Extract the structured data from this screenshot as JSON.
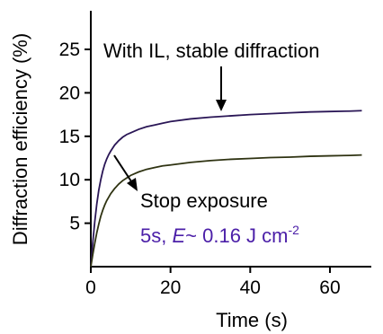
{
  "chart_data": {
    "type": "line",
    "title": "",
    "xlabel": "Time (s)",
    "ylabel": "Diffraction efficiency (%)",
    "xlim": [
      0,
      70
    ],
    "ylim": [
      0,
      30
    ],
    "x_ticks": [
      0,
      20,
      40,
      60
    ],
    "y_ticks": [
      5,
      10,
      15,
      20,
      25
    ],
    "grid": false,
    "series": [
      {
        "color": "#2a1656",
        "x": [
          0,
          0.5,
          1,
          1.5,
          2,
          2.5,
          3,
          3.5,
          4,
          4.5,
          5,
          6,
          7,
          8,
          9,
          10,
          12,
          14,
          16,
          18,
          20,
          25,
          30,
          35,
          40,
          45,
          50,
          55,
          60,
          65,
          68
        ],
        "y": [
          0,
          2.8,
          5.2,
          7.2,
          8.8,
          10.0,
          11.0,
          11.8,
          12.4,
          12.9,
          13.3,
          14.0,
          14.5,
          14.9,
          15.2,
          15.4,
          15.8,
          16.1,
          16.3,
          16.5,
          16.7,
          17.0,
          17.2,
          17.35,
          17.5,
          17.6,
          17.7,
          17.8,
          17.85,
          17.9,
          17.95
        ]
      },
      {
        "color": "#2f3312",
        "x": [
          0,
          0.5,
          1,
          1.5,
          2,
          2.5,
          3,
          3.5,
          4,
          4.5,
          5,
          6,
          7,
          8,
          9,
          10,
          12,
          14,
          16,
          18,
          20,
          25,
          30,
          35,
          40,
          45,
          50,
          55,
          60,
          65,
          68
        ],
        "y": [
          0,
          1.4,
          2.7,
          3.9,
          4.9,
          5.8,
          6.5,
          7.1,
          7.6,
          8.0,
          8.4,
          9.0,
          9.5,
          9.9,
          10.2,
          10.5,
          10.9,
          11.2,
          11.4,
          11.6,
          11.7,
          12.0,
          12.2,
          12.35,
          12.45,
          12.55,
          12.6,
          12.7,
          12.75,
          12.8,
          12.85
        ]
      }
    ],
    "annotations": [
      {
        "text": "With IL, stable diffraction",
        "color": "#000000",
        "arrow_to": {
          "x": 33,
          "y": 18.5
        }
      },
      {
        "text": "Stop exposure",
        "color": "#000000",
        "arrow_from": {
          "x": 5,
          "y": 13
        }
      },
      {
        "text_parts": [
          "5s, ",
          "E",
          "~ 0.16 J cm",
          "-2"
        ],
        "color": "#4b1fa8"
      }
    ]
  }
}
